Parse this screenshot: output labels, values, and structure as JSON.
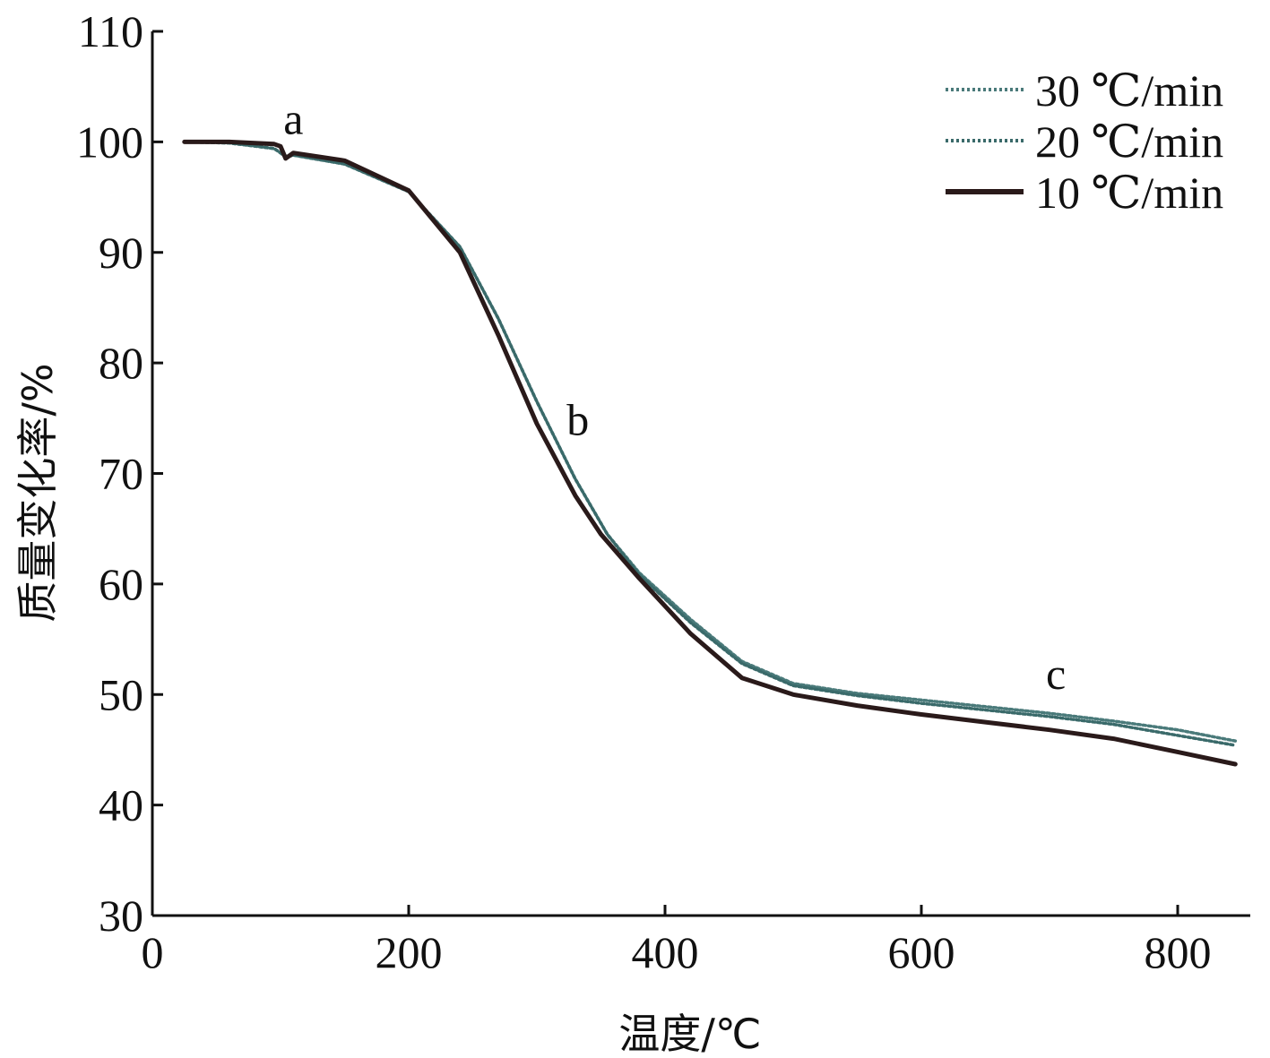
{
  "chart_data": {
    "type": "line",
    "title": "",
    "xlabel": "温度/℃",
    "ylabel": "质量变化率/%",
    "xlim": [
      0,
      850
    ],
    "ylim": [
      30,
      110
    ],
    "xticks": [
      0,
      200,
      400,
      600,
      800
    ],
    "yticks": [
      30,
      40,
      50,
      60,
      70,
      80,
      90,
      100,
      110
    ],
    "legend_position": "top-right",
    "grid": false,
    "series": [
      {
        "name": "30 ℃/min",
        "color": "#4a7a7a",
        "style": "dotted",
        "x": [
          25,
          60,
          95,
          100,
          104,
          110,
          150,
          200,
          240,
          270,
          300,
          330,
          355,
          380,
          420,
          460,
          500,
          550,
          600,
          650,
          700,
          750,
          800,
          845
        ],
        "y": [
          100.0,
          99.9,
          99.4,
          99.0,
          98.7,
          98.8,
          98.0,
          95.5,
          90.5,
          84.0,
          76.5,
          69.5,
          64.5,
          61.0,
          56.8,
          53.0,
          51.0,
          50.1,
          49.5,
          48.9,
          48.3,
          47.6,
          46.8,
          45.8
        ]
      },
      {
        "name": "20 ℃/min",
        "color": "#3a6a6a",
        "style": "dotted",
        "x": [
          25,
          60,
          95,
          100,
          104,
          110,
          150,
          200,
          240,
          270,
          300,
          330,
          355,
          380,
          420,
          460,
          500,
          550,
          600,
          650,
          700,
          750,
          800,
          845
        ],
        "y": [
          100.0,
          99.9,
          99.4,
          99.0,
          98.6,
          98.8,
          98.0,
          95.5,
          90.5,
          84.0,
          76.5,
          69.5,
          64.5,
          60.8,
          56.5,
          52.8,
          50.8,
          49.9,
          49.2,
          48.6,
          48.0,
          47.3,
          46.3,
          45.4
        ]
      },
      {
        "name": "10 ℃/min",
        "color": "#2a1a1a",
        "style": "solid",
        "x": [
          25,
          60,
          95,
          100,
          104,
          110,
          150,
          200,
          240,
          270,
          300,
          330,
          350,
          380,
          420,
          460,
          500,
          550,
          600,
          650,
          700,
          750,
          800,
          845
        ],
        "y": [
          100.0,
          100.0,
          99.8,
          99.6,
          98.5,
          99.0,
          98.3,
          95.6,
          90.0,
          82.5,
          74.5,
          68.0,
          64.5,
          60.5,
          55.5,
          51.5,
          50.0,
          49.0,
          48.2,
          47.5,
          46.8,
          46.0,
          44.8,
          43.7
        ]
      }
    ],
    "annotations": [
      {
        "text": "a",
        "x": 110,
        "y": 100.7
      },
      {
        "text": "b",
        "x": 332,
        "y": 73.5
      },
      {
        "text": "c",
        "x": 705,
        "y": 50.5
      }
    ]
  }
}
